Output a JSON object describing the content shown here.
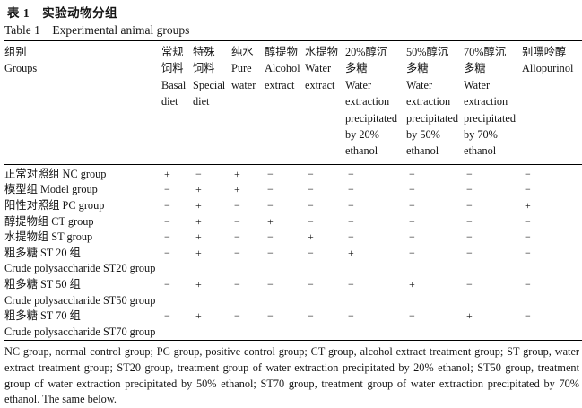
{
  "page": {
    "background": "#ffffff",
    "text_color": "#141414",
    "rule_color": "#000000"
  },
  "title": {
    "cn": "表 1　实验动物分组",
    "en": "Table 1　Experimental animal groups"
  },
  "table": {
    "group_header": {
      "cn": "组别",
      "en": "Groups"
    },
    "columns": [
      {
        "id": "basal-diet",
        "lines": [
          "常规",
          "饲料",
          "Basal",
          "diet"
        ]
      },
      {
        "id": "special-diet",
        "lines": [
          "特殊",
          "饲料",
          "Special",
          "diet"
        ]
      },
      {
        "id": "pure-water",
        "lines": [
          "纯水",
          "Pure",
          "water"
        ]
      },
      {
        "id": "alcohol-extract",
        "lines": [
          "醇提物",
          "Alcohol",
          "extract"
        ]
      },
      {
        "id": "water-extract",
        "lines": [
          "水提物",
          "Water",
          "extract"
        ]
      },
      {
        "id": "st20-ethanol",
        "lines": [
          "20%醇沉",
          "多糖",
          "Water",
          "extraction",
          "precipitated",
          "by 20%",
          "ethanol"
        ]
      },
      {
        "id": "st50-ethanol",
        "lines": [
          "50%醇沉",
          "多糖",
          "Water",
          "extraction",
          "precipitated",
          "by 50%",
          "ethanol"
        ]
      },
      {
        "id": "st70-ethanol",
        "lines": [
          "70%醇沉",
          "多糖",
          "Water",
          "extraction",
          "precipitated",
          "by 70%",
          "ethanol"
        ]
      },
      {
        "id": "allopurinol",
        "lines": [
          "别嘌呤醇",
          "Allopurinol"
        ]
      }
    ],
    "rows": [
      {
        "id": "nc-group",
        "label_lines": [
          "正常对照组 NC group"
        ],
        "values": [
          "+",
          "−",
          "+",
          "−",
          "−",
          "−",
          "−",
          "−",
          "−"
        ]
      },
      {
        "id": "model-group",
        "label_lines": [
          "模型组 Model group"
        ],
        "values": [
          "−",
          "+",
          "+",
          "−",
          "−",
          "−",
          "−",
          "−",
          "−"
        ]
      },
      {
        "id": "pc-group",
        "label_lines": [
          "阳性对照组 PC group"
        ],
        "values": [
          "−",
          "+",
          "−",
          "−",
          "−",
          "−",
          "−",
          "−",
          "+"
        ]
      },
      {
        "id": "ct-group",
        "label_lines": [
          "醇提物组 CT group"
        ],
        "values": [
          "−",
          "+",
          "−",
          "+",
          "−",
          "−",
          "−",
          "−",
          "−"
        ]
      },
      {
        "id": "st-group",
        "label_lines": [
          "水提物组 ST group"
        ],
        "values": [
          "−",
          "+",
          "−",
          "−",
          "+",
          "−",
          "−",
          "−",
          "−"
        ]
      },
      {
        "id": "st20-group",
        "label_lines": [
          "粗多糖 ST 20 组",
          "Crude polysaccharide ST20 group"
        ],
        "values": [
          "−",
          "+",
          "−",
          "−",
          "−",
          "+",
          "−",
          "−",
          "−"
        ]
      },
      {
        "id": "st50-group",
        "label_lines": [
          "粗多糖 ST 50 组",
          "Crude polysaccharide ST50 group"
        ],
        "values": [
          "−",
          "+",
          "−",
          "−",
          "−",
          "−",
          "+",
          "−",
          "−"
        ]
      },
      {
        "id": "st70-group",
        "label_lines": [
          "粗多糖 ST 70 组",
          "Crude polysaccharide ST70 group"
        ],
        "values": [
          "−",
          "+",
          "−",
          "−",
          "−",
          "−",
          "−",
          "+",
          "−"
        ]
      }
    ]
  },
  "footnote": "NC group, normal control group; PC group, positive control group; CT group, alcohol extract treatment group; ST group, water extract treatment group; ST20 group, treatment group of water extraction precipitated by 20% ethanol; ST50 group, treatment group of water extraction precipitated by 50% ethanol; ST70 group, treatment group of water extraction precipitated by 70% ethanol. The same below."
}
